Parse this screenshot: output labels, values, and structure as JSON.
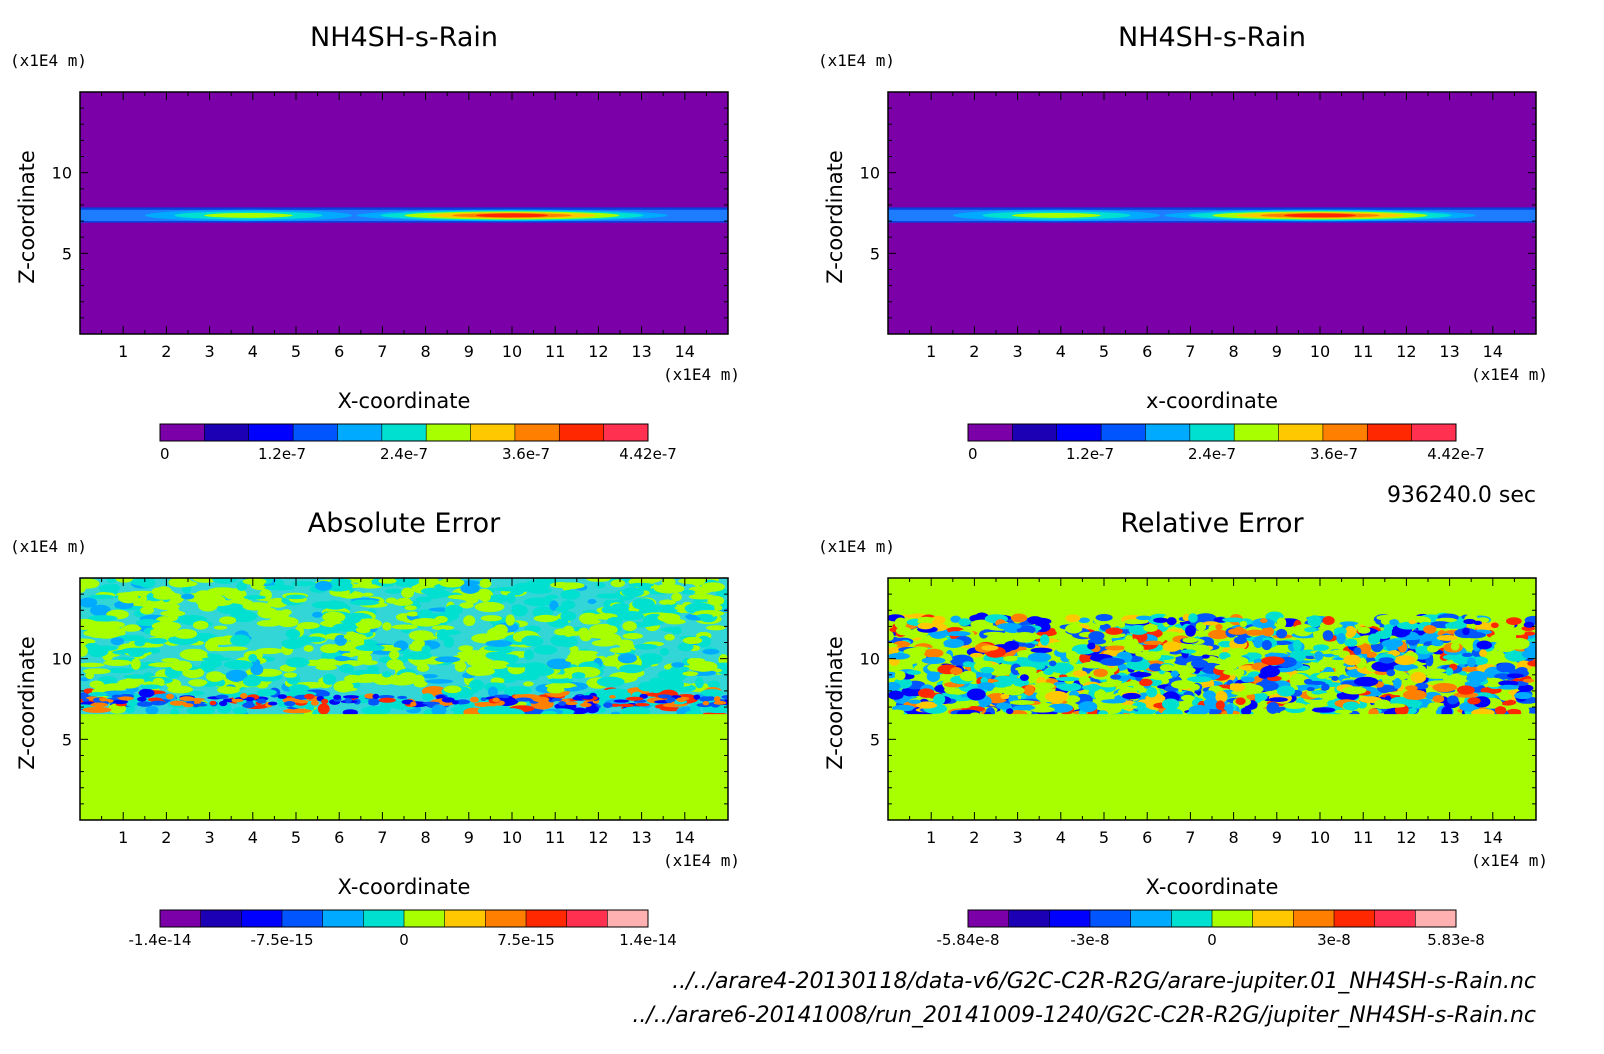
{
  "colors": {
    "bg_purple": "#7b00a8",
    "band_blue": "#0a3fe0",
    "band_cyan": "#00d7d0",
    "green": "#a8ff00",
    "cyan_mix": "#33d6d6",
    "palette": [
      "#7b00a8",
      "#1c00b4",
      "#0000ff",
      "#0055ff",
      "#00aaff",
      "#00e0d0",
      "#a8ff00",
      "#ffc800",
      "#ff8000",
      "#ff2800",
      "#ff3050",
      "#ffb0b0"
    ]
  },
  "time_label": "936240.0 sec",
  "files": [
    "../../arare4-20130118/data-v6/G2C-C2R-R2G/arare-jupiter.01_NH4SH-s-Rain.nc",
    "../../arare6-20141008/run_20141009-1240/G2C-C2R-R2G/jupiter_NH4SH-s-Rain.nc"
  ],
  "chart_data": [
    {
      "type": "heatmap",
      "title": "NH4SH-s-Rain",
      "xlabel": "X-coordinate",
      "ylabel": "Z-coordinate",
      "x_unit": "(x1E4 m)",
      "y_unit": "(x1E4 m)",
      "xlim": [
        0,
        15
      ],
      "ylim": [
        0,
        15
      ],
      "x_ticks": [
        "1",
        "2",
        "3",
        "4",
        "5",
        "6",
        "7",
        "8",
        "9",
        "10",
        "11",
        "12",
        "13",
        "14"
      ],
      "y_ticks": [
        "5",
        "10"
      ],
      "colorbar": {
        "labels": [
          "0",
          "1.2e-7",
          "2.4e-7",
          "3.6e-7",
          "4.42e-7"
        ],
        "n_colors": 11
      },
      "field": "thin rain band near z=7.3, peaks near x=3.8 and x=10"
    },
    {
      "type": "heatmap",
      "title": "NH4SH-s-Rain",
      "xlabel": "x-coordinate",
      "ylabel": "Z-coordinate",
      "x_unit": "(x1E4 m)",
      "y_unit": "(x1E4 m)",
      "xlim": [
        0,
        15
      ],
      "ylim": [
        0,
        15
      ],
      "x_ticks": [
        "1",
        "2",
        "3",
        "4",
        "5",
        "6",
        "7",
        "8",
        "9",
        "10",
        "11",
        "12",
        "13",
        "14"
      ],
      "y_ticks": [
        "5",
        "10"
      ],
      "colorbar": {
        "labels": [
          "0",
          "1.2e-7",
          "2.4e-7",
          "3.6e-7",
          "4.42e-7"
        ],
        "n_colors": 11
      },
      "field": "thin rain band near z=7.3, peaks near x=3.8 and x=10"
    },
    {
      "type": "heatmap",
      "title": "Absolute Error",
      "xlabel": "X-coordinate",
      "ylabel": "Z-coordinate",
      "x_unit": "(x1E4 m)",
      "y_unit": "(x1E4 m)",
      "xlim": [
        0,
        15
      ],
      "ylim": [
        0,
        15
      ],
      "x_ticks": [
        "1",
        "2",
        "3",
        "4",
        "5",
        "6",
        "7",
        "8",
        "9",
        "10",
        "11",
        "12",
        "13",
        "14"
      ],
      "y_ticks": [
        "5",
        "10"
      ],
      "colorbar": {
        "labels": [
          "-1.4e-14",
          "-7.5e-15",
          "0",
          "7.5e-15",
          "1.4e-14"
        ],
        "n_colors": 12
      },
      "field": "noise above z=6.5, zero below"
    },
    {
      "type": "heatmap",
      "title": "Relative Error",
      "xlabel": "X-coordinate",
      "ylabel": "Z-coordinate",
      "x_unit": "(x1E4 m)",
      "y_unit": "(x1E4 m)",
      "xlim": [
        0,
        15
      ],
      "ylim": [
        0,
        15
      ],
      "x_ticks": [
        "1",
        "2",
        "3",
        "4",
        "5",
        "6",
        "7",
        "8",
        "9",
        "10",
        "11",
        "12",
        "13",
        "14"
      ],
      "y_ticks": [
        "5",
        "10"
      ],
      "colorbar": {
        "labels": [
          "-5.84e-8",
          "-3e-8",
          "0",
          "3e-8",
          "5.83e-8"
        ],
        "n_colors": 12
      },
      "field": "strong noise between z=6.5 and z=12.5, zero below"
    }
  ]
}
